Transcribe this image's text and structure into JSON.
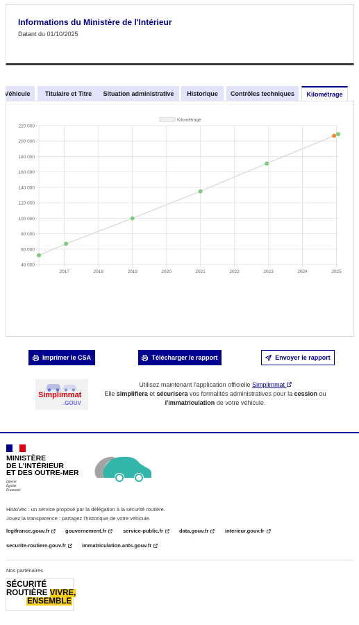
{
  "header": {
    "title": "Informations du Ministère de l'Intérieur",
    "date": "Datant du 01/10/2025"
  },
  "tabs": [
    {
      "label": "Véhicule",
      "active": false
    },
    {
      "label": "Titulaire et Titre",
      "active": false
    },
    {
      "label": "Situation administrative",
      "active": false
    },
    {
      "label": "Historique",
      "active": false
    },
    {
      "label": "Contrôles techniques",
      "active": false
    },
    {
      "label": "Kilométrage",
      "active": true
    }
  ],
  "chart_data": {
    "type": "line",
    "title": "",
    "xlabel": "",
    "ylabel": "",
    "legend": {
      "label": "Kilométrage",
      "placement": "top-center"
    },
    "xlim": [
      2016.25,
      2025.05
    ],
    "ylim": [
      40000,
      220000
    ],
    "x_ticks": [
      "2017",
      "2018",
      "2019",
      "2020",
      "2021",
      "2022",
      "2023",
      "2024",
      "2025"
    ],
    "y_ticks": [
      "40 000",
      "60 000",
      "80 000",
      "100 000",
      "120 000",
      "140 000",
      "160 000",
      "180 000",
      "200 000",
      "220 000"
    ],
    "grid": true,
    "line_color": "#dddddd",
    "series": [
      {
        "name": "Kilométrage",
        "points": [
          {
            "x": 2016.25,
            "y": 52000,
            "color": "#7fc97f"
          },
          {
            "x": 2017.05,
            "y": 67000,
            "color": "#7fc97f"
          },
          {
            "x": 2019.0,
            "y": 100000,
            "color": "#7fc97f"
          },
          {
            "x": 2021.0,
            "y": 135000,
            "color": "#7fc97f"
          },
          {
            "x": 2022.95,
            "y": 171000,
            "color": "#7fc97f"
          },
          {
            "x": 2024.93,
            "y": 207000,
            "color": "#ef8a2c"
          },
          {
            "x": 2025.05,
            "y": 209000,
            "color": "#7fc97f"
          }
        ]
      }
    ]
  },
  "actions": {
    "print_csa": "Imprimer le CSA",
    "download_report": "Télécharger le rapport",
    "send_report": "Envoyer le rapport"
  },
  "simplimmat": {
    "logo_word": "Simplimmat",
    "logo_suffix": ".GOUV",
    "line1_prefix": "Utilisez maintenant l'application officielle",
    "app_link": "Simplimmat",
    "line2_a": "Elle",
    "line2_b": "simplifiera",
    "line2_c": "et",
    "line2_d": "sécurisera",
    "line2_e": "vos formalités administratives pour la",
    "line2_f": "cession",
    "line2_g": "ou",
    "line3_a": "l'immatriculation",
    "line3_b": "de votre véhicule."
  },
  "footer": {
    "ministry": [
      "MINISTÈRE",
      "DE L'INTÉRIEUR",
      "ET DES OUTRE-MER"
    ],
    "motto": [
      "Liberté",
      "Égalité",
      "Fraternité"
    ],
    "description_1": "HistoVec : un service proposé par la délégation à la sécurité routière.",
    "description_2": "Jouez la transparence : partagez l'historique de votre véhicule.",
    "links": [
      "legifrance.gouv.fr",
      "gouvernement.fr",
      "service-public.fr",
      "data.gouv.fr",
      "interieur.gouv.fr",
      "securite-routiere.gouv.fr",
      "immatriculation.ants.gouv.fr"
    ],
    "partners_label": "Nos partenaires",
    "partner_logo": [
      "SÉCURITÉ",
      "ROUTIÈRE",
      "VIVRE,",
      "ENSEMBLE"
    ]
  },
  "colors": {
    "brand_blue": "#000091",
    "tab_bg": "#e3e3fd",
    "point_green": "#7fc97f",
    "point_orange": "#ef8a2c",
    "flag_blue": "#000091",
    "flag_red": "#e1000f",
    "partner_yellow": "#f7d117"
  }
}
